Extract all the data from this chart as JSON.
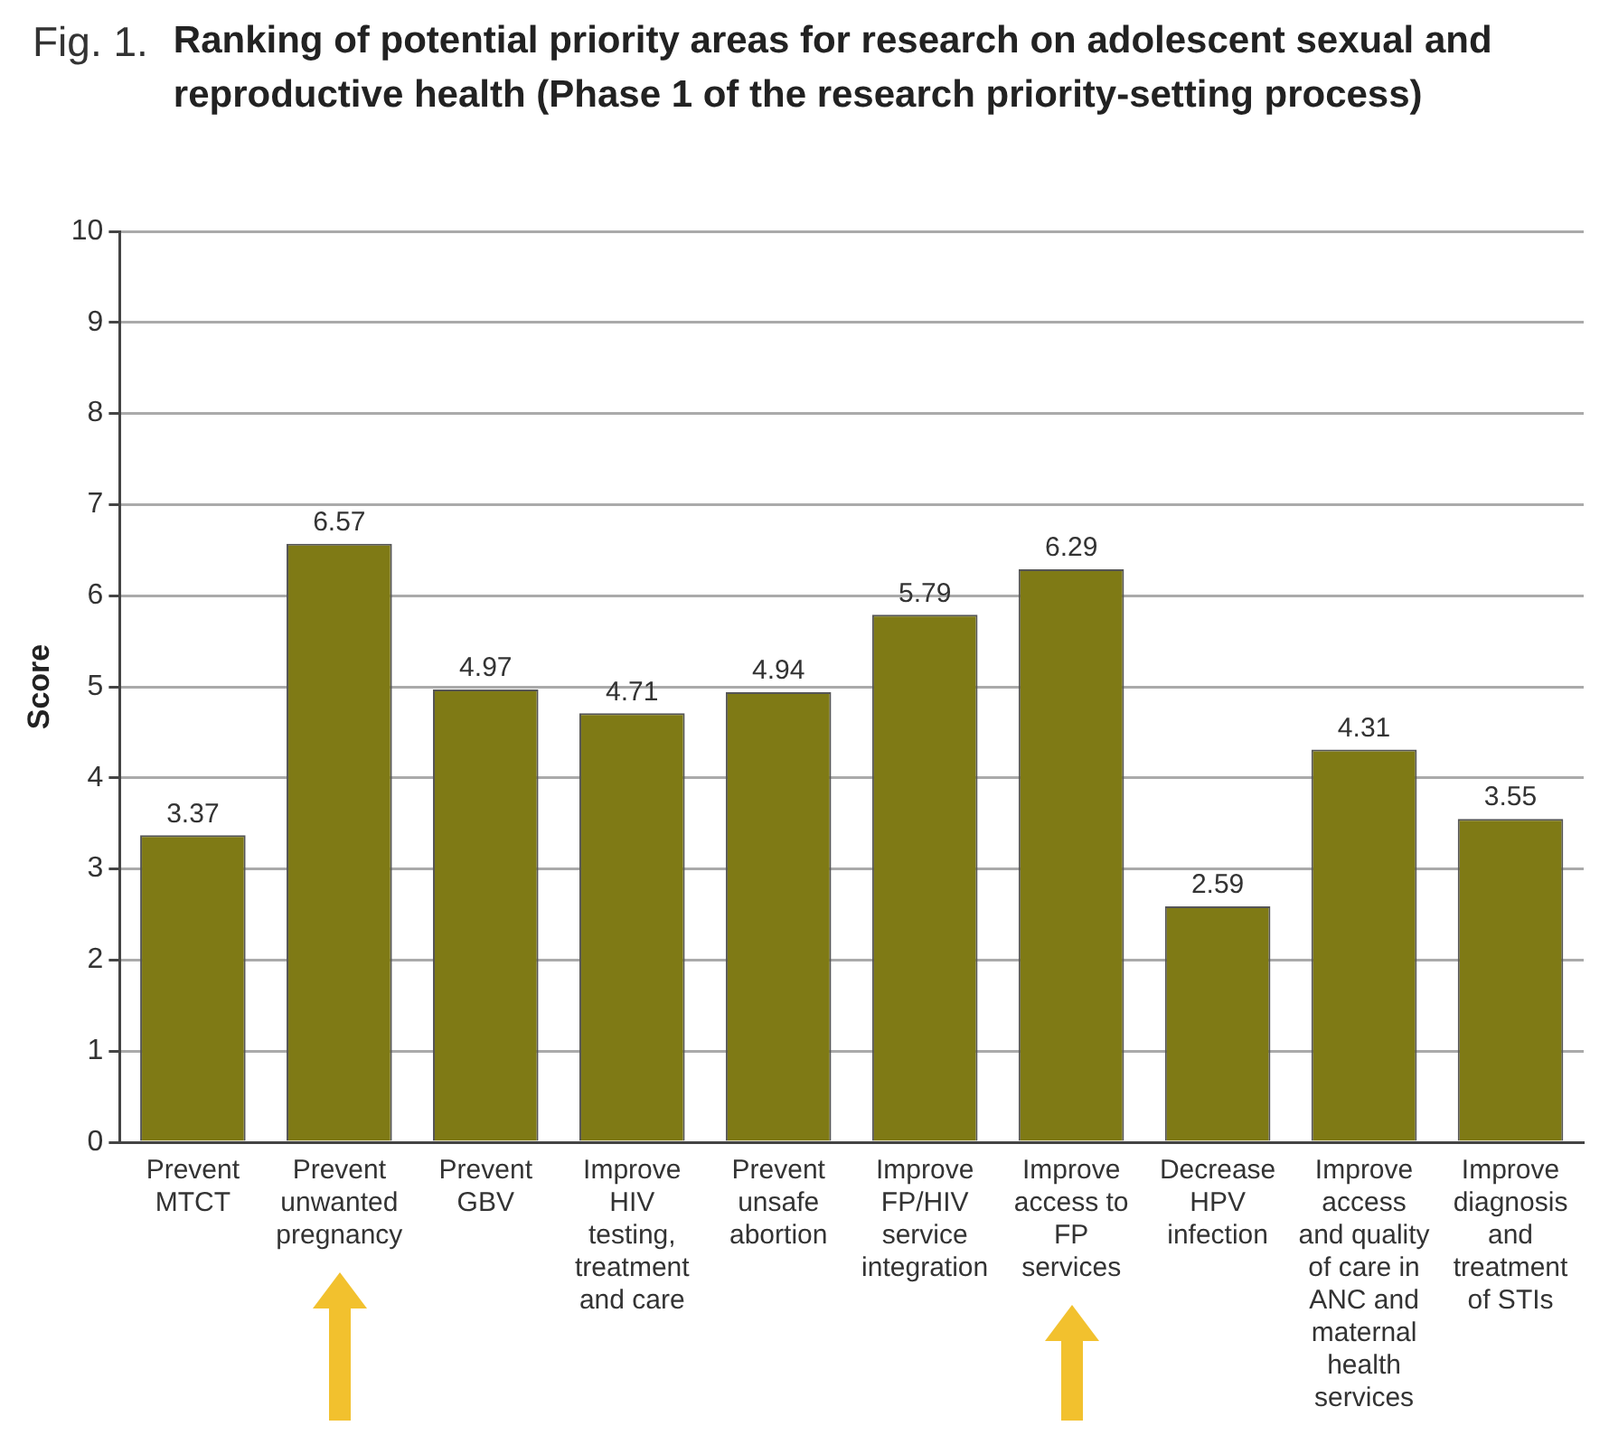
{
  "chart_data": {
    "type": "bar",
    "title": "Ranking of potential priority areas for research on adolescent sexual and reproductive health (Phase 1 of the research priority-setting process)",
    "annotations": [
      "Fig. 1."
    ],
    "ylabel": "Score",
    "categories": [
      "Prevent MTCT",
      "Prevent unwanted pregnancy",
      "Prevent GBV",
      "Improve HIV testing, treatment and care",
      "Prevent unsafe abortion",
      "Improve FP/HIV service integration",
      "Improve access to FP services",
      "Decrease HPV infection",
      "Improve access and quality of care in ANC and maternal health services",
      "Improve diagnosis and treatment of STIs"
    ],
    "values": [
      3.37,
      6.57,
      4.97,
      4.71,
      4.94,
      5.79,
      6.29,
      2.59,
      4.31,
      3.55
    ],
    "color": "#7f7a15",
    "ylim": [
      0,
      10
    ],
    "yticks": [
      0,
      1,
      2,
      3,
      4,
      5,
      6,
      7,
      8,
      9,
      10
    ],
    "grid": "y",
    "data_labels": true,
    "legend": false
  }
}
